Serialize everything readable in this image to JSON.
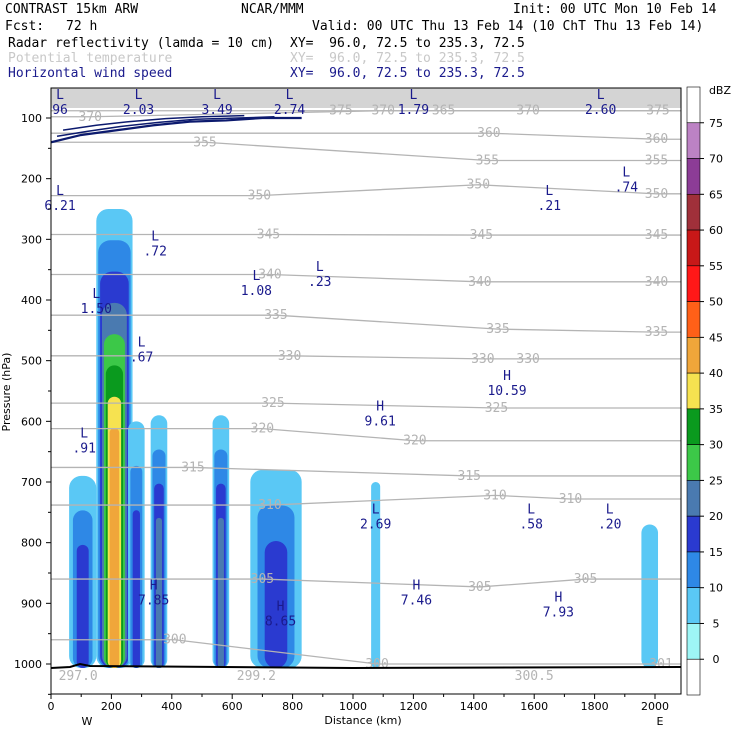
{
  "header": {
    "model": "CONTRAST 15km ARW",
    "center": "NCAR/MMM",
    "init": "Init: 00 UTC Mon 10 Feb 14",
    "fcst_label": "Fcst:",
    "fcst_value": "72 h",
    "valid": "Valid: 00 UTC Thu 13 Feb 14 (10 ChT Thu 13 Feb 14)",
    "fields": [
      {
        "name": "Radar reflectivity (lamda = 10 cm)",
        "xy": "XY=  96.0, 72.5 to 235.3, 72.5",
        "style": "black"
      },
      {
        "name": "Potential temperature",
        "xy": "XY=  96.0, 72.5 to 235.3, 72.5",
        "style": "gray"
      },
      {
        "name": "Horizontal wind speed",
        "xy": "XY=  96.0, 72.5 to 235.3, 72.5",
        "style": "blue"
      }
    ]
  },
  "colors": {
    "theta_contour": "#b4b4b4",
    "wind_contour": "#0c1a6e",
    "label_blue": "#1a1a8c"
  },
  "colorbar": {
    "unit": "dBZ",
    "levels": [
      "0",
      "5",
      "10",
      "15",
      "20",
      "25",
      "30",
      "35",
      "40",
      "45",
      "50",
      "55",
      "60",
      "65",
      "70",
      "75"
    ],
    "colors": [
      "#ffffff",
      "#9ef6f6",
      "#5ac8f5",
      "#2e88e6",
      "#2a3ad0",
      "#4a7ab0",
      "#3cc848",
      "#0a9a1e",
      "#f6e250",
      "#f0a63a",
      "#ff6018",
      "#ff1818",
      "#c81818",
      "#a0303a",
      "#8c3c96",
      "#bc82c4",
      "#ffffff"
    ]
  },
  "chart_data": {
    "type": "heatmap",
    "title": "",
    "xlabel": "Distance (km)",
    "ylabel": "Pressure (hPa)",
    "xlim": [
      0,
      2080
    ],
    "ylim": [
      1060,
      60
    ],
    "x_ticks": [
      "0",
      "200",
      "400",
      "600",
      "800",
      "1000",
      "1200",
      "1400",
      "1600",
      "1800",
      "2000"
    ],
    "y_ticks": [
      "100",
      "200",
      "300",
      "400",
      "500",
      "600",
      "700",
      "800",
      "900",
      "1000"
    ],
    "x_end_labels": {
      "left": "W",
      "right": "E"
    },
    "reflectivity_cells": [
      {
        "x": [
          60,
          150
        ],
        "p": [
          1000,
          690
        ],
        "max_dbz": 15
      },
      {
        "x": [
          150,
          270
        ],
        "p": [
          1000,
          250
        ],
        "max_dbz": 40
      },
      {
        "x": [
          255,
          310
        ],
        "p": [
          1000,
          600
        ],
        "max_dbz": 15
      },
      {
        "x": [
          330,
          385
        ],
        "p": [
          1000,
          590
        ],
        "max_dbz": 20
      },
      {
        "x": [
          535,
          590
        ],
        "p": [
          1000,
          590
        ],
        "max_dbz": 20
      },
      {
        "x": [
          660,
          830
        ],
        "p": [
          1000,
          680
        ],
        "max_dbz": 15
      },
      {
        "x": [
          1060,
          1090
        ],
        "p": [
          1000,
          700
        ],
        "max_dbz": 5
      },
      {
        "x": [
          1955,
          2010
        ],
        "p": [
          1000,
          770
        ],
        "max_dbz": 5
      }
    ],
    "theta_labels": [
      {
        "text": "370",
        "x": 130,
        "p": 98
      },
      {
        "text": "375",
        "x": 960,
        "p": 88
      },
      {
        "text": "370",
        "x": 1100,
        "p": 88
      },
      {
        "text": "365",
        "x": 1300,
        "p": 88
      },
      {
        "text": "370",
        "x": 1580,
        "p": 88
      },
      {
        "text": "375",
        "x": 2010,
        "p": 88
      },
      {
        "text": "360",
        "x": 1450,
        "p": 125
      },
      {
        "text": "360",
        "x": 2005,
        "p": 135
      },
      {
        "text": "355",
        "x": 510,
        "p": 140
      },
      {
        "text": "355",
        "x": 1445,
        "p": 170
      },
      {
        "text": "355",
        "x": 2005,
        "p": 170
      },
      {
        "text": "350",
        "x": 690,
        "p": 228
      },
      {
        "text": "350",
        "x": 1415,
        "p": 210
      },
      {
        "text": "350",
        "x": 2005,
        "p": 225
      },
      {
        "text": "345",
        "x": 720,
        "p": 292
      },
      {
        "text": "345",
        "x": 1425,
        "p": 293
      },
      {
        "text": "345",
        "x": 2005,
        "p": 293
      },
      {
        "text": "340",
        "x": 725,
        "p": 358
      },
      {
        "text": "340",
        "x": 1420,
        "p": 370
      },
      {
        "text": "340",
        "x": 2005,
        "p": 370
      },
      {
        "text": "335",
        "x": 745,
        "p": 425
      },
      {
        "text": "335",
        "x": 1480,
        "p": 448
      },
      {
        "text": "335",
        "x": 2005,
        "p": 453
      },
      {
        "text": "330",
        "x": 790,
        "p": 492
      },
      {
        "text": "330",
        "x": 1430,
        "p": 497
      },
      {
        "text": "330",
        "x": 1580,
        "p": 497
      },
      {
        "text": "325",
        "x": 735,
        "p": 570
      },
      {
        "text": "325",
        "x": 1475,
        "p": 578
      },
      {
        "text": "320",
        "x": 700,
        "p": 612
      },
      {
        "text": "320",
        "x": 1205,
        "p": 632
      },
      {
        "text": "315",
        "x": 470,
        "p": 676
      },
      {
        "text": "315",
        "x": 1385,
        "p": 690
      },
      {
        "text": "310",
        "x": 725,
        "p": 738
      },
      {
        "text": "310",
        "x": 1470,
        "p": 722
      },
      {
        "text": "310",
        "x": 1720,
        "p": 728
      },
      {
        "text": "305",
        "x": 700,
        "p": 860
      },
      {
        "text": "305",
        "x": 1420,
        "p": 873
      },
      {
        "text": "305",
        "x": 1770,
        "p": 860
      },
      {
        "text": "300",
        "x": 410,
        "p": 960
      },
      {
        "text": "300",
        "x": 1080,
        "p": 1000
      },
      {
        "text": "301",
        "x": 2020,
        "p": 1000
      },
      {
        "text": "297.0",
        "x": 90,
        "p": 1020
      },
      {
        "text": "299.2",
        "x": 680,
        "p": 1020
      },
      {
        "text": "300.5",
        "x": 1600,
        "p": 1020
      }
    ],
    "wind_extrema": [
      {
        "type": "L",
        "value": "96",
        "x": 30,
        "p": 82,
        "partial": true
      },
      {
        "type": "L",
        "value": "2.03",
        "x": 290,
        "p": 82
      },
      {
        "type": "L",
        "value": "3.49",
        "x": 550,
        "p": 82
      },
      {
        "type": "L",
        "value": "2.74",
        "x": 790,
        "p": 82
      },
      {
        "type": "L",
        "value": "1.79",
        "x": 1200,
        "p": 82
      },
      {
        "type": "L",
        "value": "2.60",
        "x": 1820,
        "p": 82
      },
      {
        "type": "L",
        "value": "6.21",
        "x": 30,
        "p": 240,
        "partial": true
      },
      {
        "type": "L",
        "value": ".21",
        "x": 1650,
        "p": 240
      },
      {
        "type": "L",
        "value": ".74",
        "x": 1905,
        "p": 210
      },
      {
        "type": "L",
        "value": ".72",
        "x": 345,
        "p": 315
      },
      {
        "type": "L",
        "value": ".23",
        "x": 890,
        "p": 365
      },
      {
        "type": "L",
        "value": "1.08",
        "x": 680,
        "p": 380
      },
      {
        "type": "L",
        "value": "1.50",
        "x": 150,
        "p": 410
      },
      {
        "type": "L",
        "value": ".67",
        "x": 300,
        "p": 490
      },
      {
        "type": "L",
        "value": ".91",
        "x": 110,
        "p": 640
      },
      {
        "type": "H",
        "value": "10.59",
        "x": 1510,
        "p": 545
      },
      {
        "type": "H",
        "value": "9.61",
        "x": 1090,
        "p": 595
      },
      {
        "type": "L",
        "value": "2.69",
        "x": 1075,
        "p": 765
      },
      {
        "type": "L",
        "value": ".58",
        "x": 1590,
        "p": 765
      },
      {
        "type": "L",
        "value": ".20",
        "x": 1850,
        "p": 765
      },
      {
        "type": "H",
        "value": "7.85",
        "x": 340,
        "p": 890
      },
      {
        "type": "H",
        "value": "8.65",
        "x": 760,
        "p": 925
      },
      {
        "type": "H",
        "value": "7.46",
        "x": 1210,
        "p": 890
      },
      {
        "type": "H",
        "value": "7.93",
        "x": 1680,
        "p": 910
      }
    ]
  }
}
